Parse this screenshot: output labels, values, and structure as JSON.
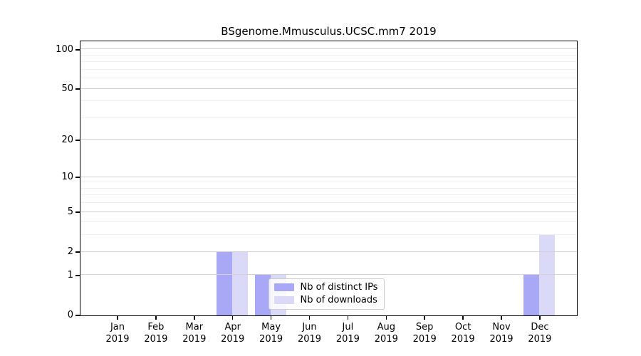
{
  "title": "BSgenome.Mmusculus.UCSC.mm7 2019",
  "chart_data": {
    "type": "bar",
    "title": "BSgenome.Mmusculus.UCSC.mm7 2019",
    "categories": [
      "Jan",
      "Feb",
      "Mar",
      "Apr",
      "May",
      "Jun",
      "Jul",
      "Aug",
      "Sep",
      "Oct",
      "Nov",
      "Dec"
    ],
    "year": "2019",
    "series": [
      {
        "name": "Nb of distinct IPs",
        "color": "#a8a8f6",
        "values": [
          0,
          0,
          0,
          2,
          1,
          0,
          0,
          0,
          0,
          0,
          0,
          1
        ]
      },
      {
        "name": "Nb of downloads",
        "color": "#dadaf8",
        "values": [
          0,
          0,
          0,
          2,
          1,
          0,
          0,
          0,
          0,
          0,
          0,
          3
        ]
      }
    ],
    "yscale": "log1p",
    "ylim": [
      0,
      116
    ],
    "yticks": [
      0,
      1,
      2,
      5,
      10,
      20,
      50,
      100
    ],
    "minor_yticks": [
      3,
      4,
      6,
      7,
      8,
      9,
      30,
      40,
      60,
      70,
      80,
      90
    ],
    "grid": "horizontal, major and faint minor lines",
    "legend_position": "lower center inside plot",
    "xlabel": "",
    "ylabel": ""
  },
  "legend": {
    "items": [
      {
        "label": "Nb of distinct IPs",
        "color": "#a8a8f6"
      },
      {
        "label": "Nb of downloads",
        "color": "#dadaf8"
      }
    ]
  },
  "colors": {
    "axis": "#000000",
    "major_grid": "#d2d2d2",
    "minor_grid": "#efefef",
    "background": "#ffffff"
  }
}
